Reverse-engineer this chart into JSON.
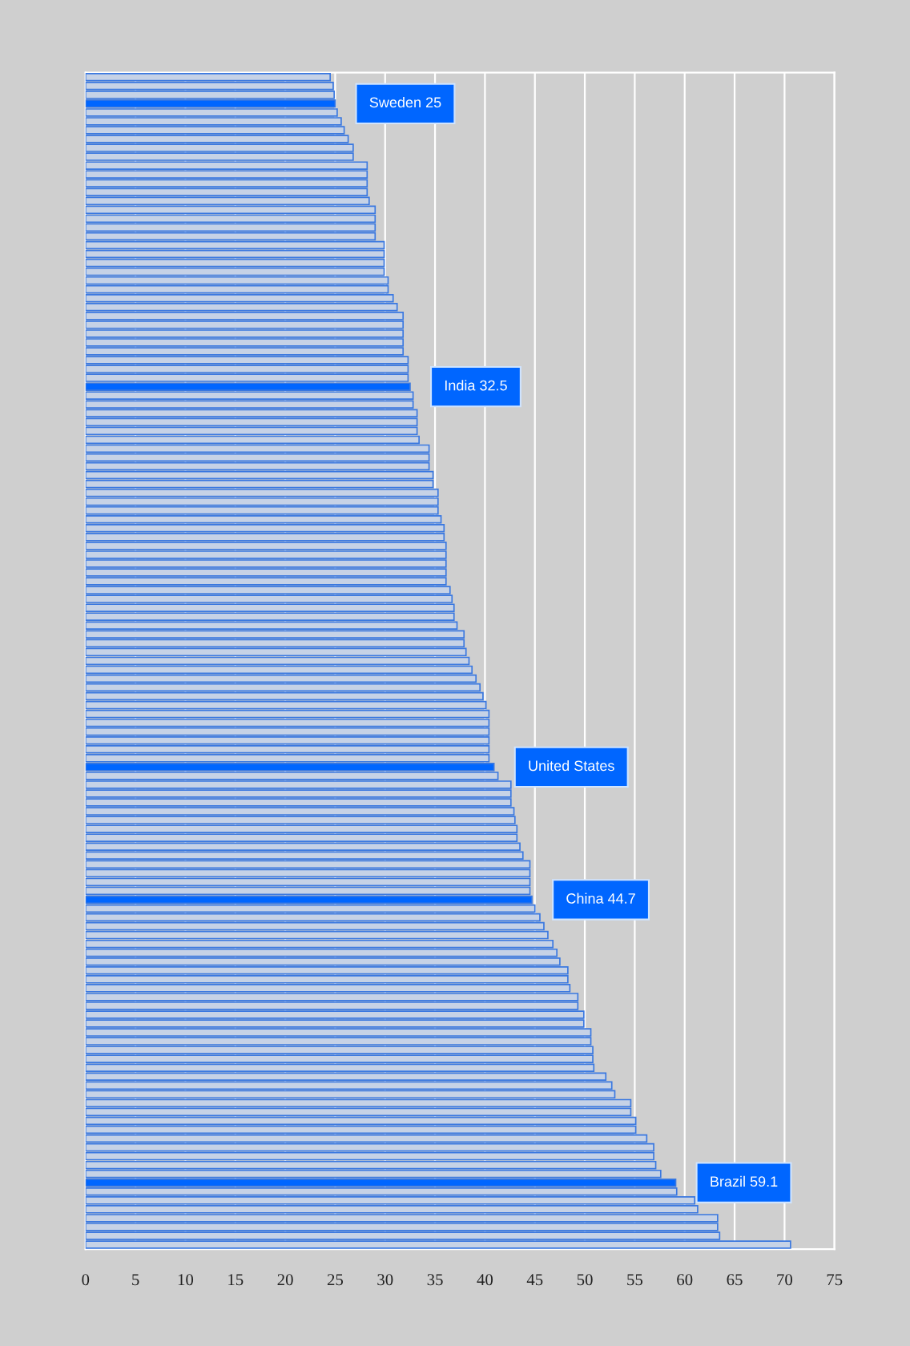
{
  "chart_data": {
    "type": "bar",
    "orientation": "horizontal",
    "categories": [
      null,
      null,
      null,
      null,
      null,
      null,
      null,
      null,
      null,
      null,
      null,
      null,
      null,
      null,
      null,
      null,
      null,
      null,
      null,
      null,
      null,
      null,
      null,
      null,
      null,
      null,
      null,
      null,
      null,
      null,
      null,
      null,
      null,
      null,
      null,
      null,
      null,
      null,
      null,
      null,
      null,
      null,
      null,
      null,
      null,
      null,
      null,
      null,
      null,
      null,
      null,
      null,
      null,
      null,
      null,
      null,
      null,
      null,
      null,
      null,
      null,
      null,
      null,
      null,
      null,
      null,
      null,
      null,
      null,
      null,
      null,
      null,
      null,
      null,
      null,
      null,
      null,
      null,
      null,
      null,
      null,
      null,
      null,
      null,
      null,
      null,
      null,
      null,
      null,
      null,
      null,
      null,
      null,
      null,
      null,
      null,
      null,
      null,
      null,
      null,
      null,
      null,
      null,
      null,
      null,
      null,
      null,
      null,
      null,
      null,
      null,
      null,
      null,
      null,
      null,
      null,
      null,
      null,
      null,
      null,
      null,
      null,
      null,
      null,
      null,
      null,
      null,
      null,
      null,
      null,
      null,
      null,
      null
    ],
    "values": [
      24.5,
      24.8,
      24.9,
      25,
      25.2,
      25.6,
      25.9,
      26.3,
      26.8,
      26.8,
      28.2,
      28.2,
      28.2,
      28.2,
      28.4,
      29.0,
      29.0,
      29.0,
      29.0,
      29.9,
      29.9,
      29.9,
      29.9,
      30.3,
      30.3,
      30.8,
      31.2,
      31.8,
      31.8,
      31.8,
      31.8,
      31.8,
      32.3,
      32.3,
      32.3,
      32.5,
      32.8,
      32.8,
      33.2,
      33.2,
      33.2,
      33.4,
      34.4,
      34.4,
      34.4,
      34.8,
      34.8,
      35.3,
      35.3,
      35.3,
      35.6,
      35.9,
      35.9,
      36.1,
      36.1,
      36.1,
      36.1,
      36.1,
      36.5,
      36.7,
      36.9,
      36.9,
      37.2,
      37.9,
      37.9,
      38.1,
      38.4,
      38.7,
      39.1,
      39.5,
      39.8,
      40.1,
      40.4,
      40.4,
      40.4,
      40.4,
      40.4,
      40.4,
      40.9,
      41.3,
      42.6,
      42.6,
      42.6,
      42.9,
      43.0,
      43.2,
      43.2,
      43.5,
      43.8,
      44.5,
      44.5,
      44.5,
      44.5,
      44.7,
      45.0,
      45.5,
      45.9,
      46.3,
      46.8,
      47.2,
      47.5,
      48.3,
      48.3,
      48.5,
      49.3,
      49.3,
      49.9,
      49.9,
      50.6,
      50.6,
      50.8,
      50.8,
      50.9,
      52.1,
      52.7,
      53.0,
      54.6,
      54.6,
      55.1,
      55.1,
      56.2,
      56.9,
      56.9,
      57.1,
      57.6,
      59.1,
      59.2,
      61.0,
      61.3,
      63.3,
      63.3,
      63.5,
      70.6
    ],
    "colors": [
      "#c6d2e6",
      "#c6d2e6",
      "#c6d2e6",
      "#0066ff",
      "#c6d2e6",
      "#c6d2e6",
      "#c6d2e6",
      "#c6d2e6",
      "#c6d2e6",
      "#c6d2e6",
      "#c6d2e6",
      "#c6d2e6",
      "#c6d2e6",
      "#c6d2e6",
      "#c6d2e6",
      "#c6d2e6",
      "#c6d2e6",
      "#c6d2e6",
      "#c6d2e6",
      "#c6d2e6",
      "#c6d2e6",
      "#c6d2e6",
      "#c6d2e6",
      "#c6d2e6",
      "#c6d2e6",
      "#c6d2e6",
      "#c6d2e6",
      "#c6d2e6",
      "#c6d2e6",
      "#c6d2e6",
      "#c6d2e6",
      "#c6d2e6",
      "#c6d2e6",
      "#c6d2e6",
      "#c6d2e6",
      "#0066ff",
      "#c6d2e6",
      "#c6d2e6",
      "#c6d2e6",
      "#c6d2e6",
      "#c6d2e6",
      "#c6d2e6",
      "#c6d2e6",
      "#c6d2e6",
      "#c6d2e6",
      "#c6d2e6",
      "#c6d2e6",
      "#c6d2e6",
      "#c6d2e6",
      "#c6d2e6",
      "#c6d2e6",
      "#c6d2e6",
      "#c6d2e6",
      "#c6d2e6",
      "#c6d2e6",
      "#c6d2e6",
      "#c6d2e6",
      "#c6d2e6",
      "#c6d2e6",
      "#c6d2e6",
      "#c6d2e6",
      "#c6d2e6",
      "#c6d2e6",
      "#c6d2e6",
      "#c6d2e6",
      "#c6d2e6",
      "#c6d2e6",
      "#c6d2e6",
      "#c6d2e6",
      "#c6d2e6",
      "#c6d2e6",
      "#c6d2e6",
      "#c6d2e6",
      "#c6d2e6",
      "#c6d2e6",
      "#c6d2e6",
      "#c6d2e6",
      "#c6d2e6",
      "#0066ff",
      "#c6d2e6",
      "#c6d2e6",
      "#c6d2e6",
      "#c6d2e6",
      "#c6d2e6",
      "#c6d2e6",
      "#c6d2e6",
      "#c6d2e6",
      "#c6d2e6",
      "#c6d2e6",
      "#c6d2e6",
      "#c6d2e6",
      "#c6d2e6",
      "#c6d2e6",
      "#0066ff",
      "#c6d2e6",
      "#c6d2e6",
      "#c6d2e6",
      "#c6d2e6",
      "#c6d2e6",
      "#c6d2e6",
      "#c6d2e6",
      "#c6d2e6",
      "#c6d2e6",
      "#c6d2e6",
      "#c6d2e6",
      "#c6d2e6",
      "#c6d2e6",
      "#c6d2e6",
      "#c6d2e6",
      "#c6d2e6",
      "#c6d2e6",
      "#c6d2e6",
      "#c6d2e6",
      "#c6d2e6",
      "#c6d2e6",
      "#c6d2e6",
      "#c6d2e6",
      "#c6d2e6",
      "#c6d2e6",
      "#c6d2e6",
      "#c6d2e6",
      "#c6d2e6",
      "#c6d2e6",
      "#c6d2e6",
      "#c6d2e6",
      "#0066ff",
      "#c6d2e6",
      "#c6d2e6",
      "#c6d2e6",
      "#c6d2e6",
      "#c6d2e6",
      "#c6d2e6",
      "#c6d2e6"
    ],
    "annotations": [
      "Sweden 25",
      "India 32.5",
      "United States",
      "China 44.7",
      "Brazil 59.1"
    ],
    "xlim": [
      0,
      75
    ],
    "xticks": [
      0,
      5,
      10,
      15,
      20,
      25,
      30,
      35,
      40,
      45,
      50,
      55,
      60,
      65,
      70,
      75
    ],
    "grid": "x",
    "tick_labels": "x"
  }
}
